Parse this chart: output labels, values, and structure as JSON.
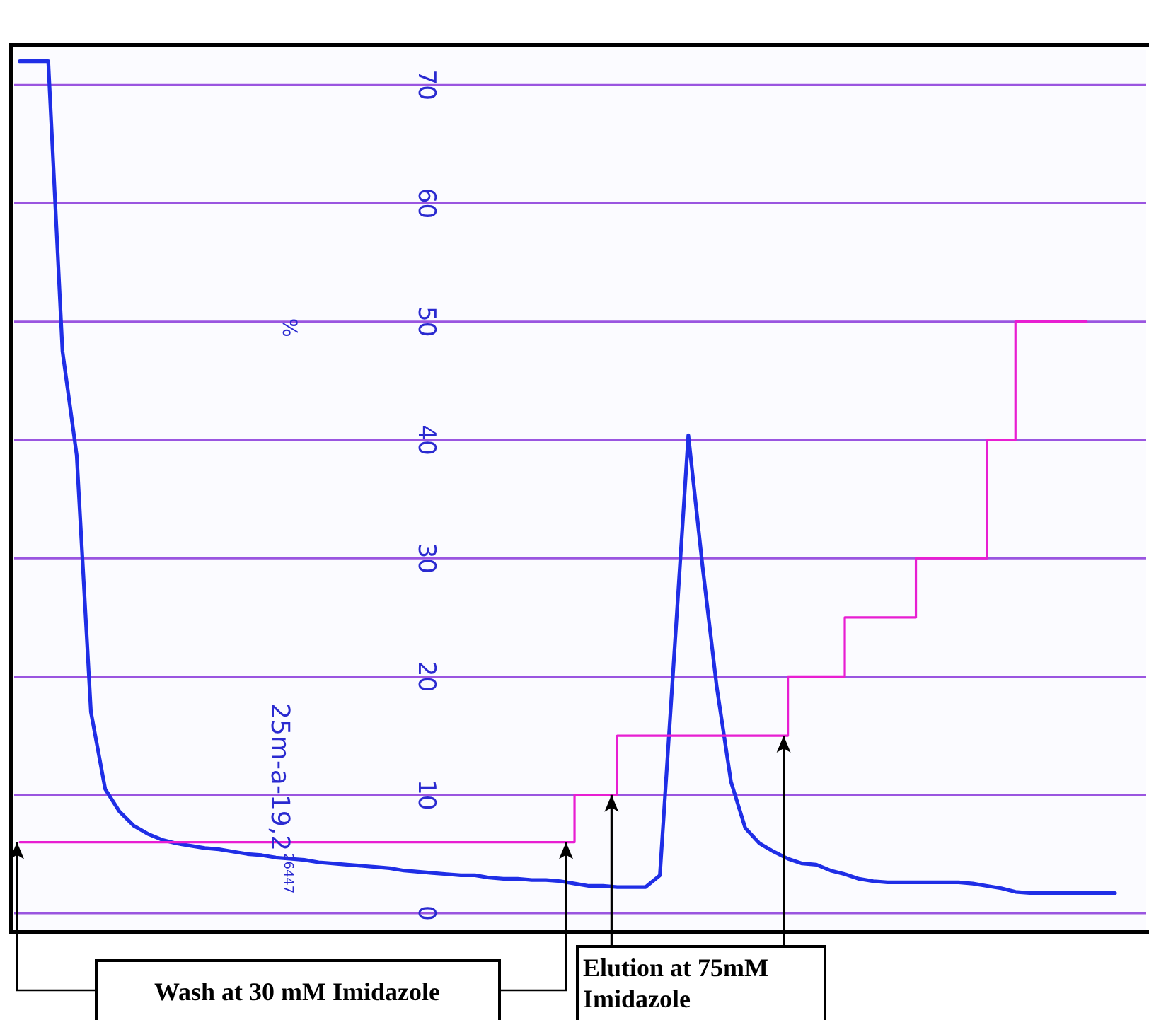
{
  "chart_data": {
    "type": "line",
    "categories": [
      null,
      null,
      null,
      null,
      null,
      null,
      null,
      null,
      null,
      null,
      null,
      null,
      null,
      null,
      null,
      null,
      null,
      null,
      null,
      null,
      null,
      null,
      null,
      null,
      null,
      null,
      null,
      null,
      null,
      null,
      null,
      null,
      null,
      null,
      null,
      null,
      null,
      null,
      null,
      null,
      null,
      null,
      null,
      null,
      null,
      null,
      null,
      null,
      null,
      null,
      null,
      null,
      null,
      null,
      null,
      null,
      null,
      null,
      null,
      null,
      null,
      null,
      null,
      null,
      null,
      null,
      null,
      null,
      null,
      null,
      null,
      null,
      null,
      null,
      null,
      null,
      null,
      null
    ],
    "series": [
      {
        "color": "#1f2ee6",
        "values": [
          72,
          72,
          72,
          47.5,
          38.7,
          17,
          10.5,
          8.6,
          7.4,
          6.7,
          6.2,
          5.9,
          5.7,
          5.5,
          5.4,
          5.2,
          5.0,
          4.9,
          4.7,
          4.6,
          4.5,
          4.3,
          4.2,
          4.1,
          4.0,
          3.9,
          3.8,
          3.6,
          3.5,
          3.4,
          3.3,
          3.2,
          3.2,
          3.0,
          2.9,
          2.9,
          2.8,
          2.8,
          2.7,
          2.5,
          2.3,
          2.3,
          2.2,
          2.2,
          2.2,
          3.2,
          21.7,
          40.4,
          29.3,
          19.1,
          11.1,
          7.2,
          5.9,
          5.2,
          4.6,
          4.2,
          4.1,
          3.6,
          3.3,
          2.9,
          2.7,
          2.6,
          2.6,
          2.6,
          2.6,
          2.6,
          2.6,
          2.5,
          2.3,
          2.1,
          1.8,
          1.7,
          1.7,
          1.7,
          1.7,
          1.7,
          1.7,
          1.7
        ]
      },
      {
        "type": "step",
        "color": "#e81ed2",
        "values": [
          6,
          6,
          6,
          6,
          6,
          6,
          6,
          6,
          6,
          6,
          6,
          6,
          6,
          6,
          6,
          6,
          6,
          6,
          6,
          6,
          6,
          6,
          6,
          6,
          6,
          6,
          6,
          6,
          6,
          6,
          6,
          6,
          6,
          6,
          6,
          6,
          6,
          6,
          6,
          10,
          10,
          10,
          15,
          15,
          15,
          15,
          15,
          15,
          15,
          15,
          15,
          15,
          15,
          15,
          20,
          20,
          20,
          20,
          25,
          25,
          25,
          25,
          25,
          30,
          30,
          30,
          30,
          30,
          40,
          40,
          50,
          50,
          50,
          50,
          50,
          50,
          null,
          null
        ]
      }
    ],
    "ylim": [
      -1.5,
      73
    ],
    "yticks": [
      0,
      10,
      20,
      30,
      40,
      50,
      60,
      70
    ],
    "grid": "y",
    "tick_labels": "y",
    "annotations": [
      "%",
      "25m-a-19,2",
      "26447",
      "Wash at 30 mM Imidazole",
      "Elution at 75mM Imidazole"
    ]
  }
}
